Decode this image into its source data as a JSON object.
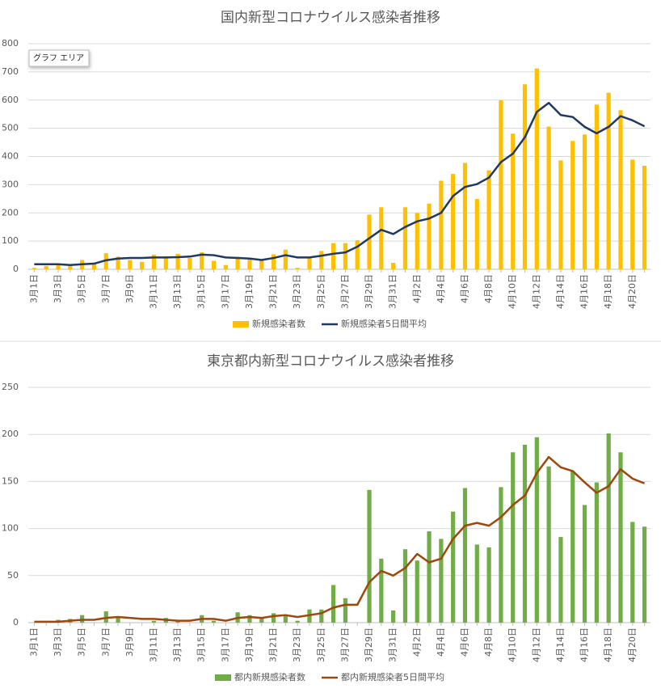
{
  "chart_data": [
    {
      "type": "bar",
      "title": "国内新型コロナウイルス感染者推移",
      "annotation": "グラフ エリア",
      "categories": [
        "3月1日",
        null,
        "3月3日",
        null,
        "3月5日",
        null,
        "3月7日",
        null,
        "3月9日",
        null,
        "3月11日",
        null,
        "3月13日",
        null,
        "3月15日",
        null,
        "3月17日",
        null,
        "3月19日",
        null,
        "3月21日",
        null,
        "3月23日",
        null,
        "3月25日",
        null,
        "3月27日",
        null,
        "3月29日",
        null,
        "3月31日",
        null,
        "4月2日",
        null,
        "4月4日",
        null,
        "4月6日",
        null,
        "4月8日",
        null,
        "4月10日",
        null,
        "4月12日",
        null,
        "4月14日",
        null,
        "4月16日",
        null,
        "4月18日",
        null,
        "4月20日",
        null
      ],
      "series": [
        {
          "name": "新規感染者数",
          "type": "bar",
          "color": "#ffc000",
          "values": [
            5,
            12,
            14,
            18,
            33,
            20,
            57,
            45,
            33,
            26,
            52,
            46,
            55,
            40,
            60,
            30,
            15,
            44,
            39,
            34,
            53,
            70,
            5,
            39,
            65,
            93,
            93,
            103,
            194,
            220,
            23,
            220,
            200,
            233,
            314,
            338,
            377,
            249,
            351,
            599,
            481,
            656,
            712,
            506,
            386,
            455,
            478,
            584,
            626,
            564,
            389,
            367
          ]
        },
        {
          "name": "新規感染者5日間平均",
          "type": "line",
          "color": "#203864",
          "values": [
            18,
            18,
            18,
            15,
            18,
            20,
            32,
            38,
            40,
            40,
            42,
            42,
            43,
            45,
            52,
            50,
            42,
            40,
            38,
            33,
            40,
            50,
            42,
            42,
            48,
            55,
            60,
            80,
            110,
            140,
            125,
            150,
            170,
            180,
            200,
            260,
            292,
            302,
            325,
            380,
            410,
            468,
            558,
            590,
            547,
            540,
            505,
            482,
            505,
            543,
            528,
            507
          ]
        }
      ],
      "ylim": [
        0,
        800
      ],
      "yticks": [
        0,
        100,
        200,
        300,
        400,
        500,
        600,
        700,
        800
      ],
      "grid": true,
      "legend": "bottom"
    },
    {
      "type": "bar",
      "title": "東京都内新型コロナウイルス感染者推移",
      "categories": [
        "3月1日",
        null,
        "3月3日",
        null,
        "3月5日",
        null,
        "3月7日",
        null,
        "3月9日",
        null,
        "3月11日",
        null,
        "3月13日",
        null,
        "3月15日",
        null,
        "3月17日",
        null,
        "3月19日",
        null,
        "3月21日",
        null,
        "3月23日",
        null,
        "3月25日",
        null,
        "3月27日",
        null,
        "3月29日",
        null,
        "3月31日",
        null,
        "4月2日",
        null,
        "4月4日",
        null,
        "4月6日",
        null,
        "4月8日",
        null,
        "4月10日",
        null,
        "4月12日",
        null,
        "4月14日",
        null,
        "4月16日",
        null,
        "4月18日",
        null,
        "4月20日",
        null
      ],
      "series": [
        {
          "name": "都内新規感染者数",
          "type": "bar",
          "color": "#70ad47",
          "values": [
            0,
            0,
            3,
            4,
            8,
            0,
            12,
            6,
            0,
            0,
            2,
            5,
            2,
            0,
            8,
            2,
            0,
            11,
            8,
            6,
            10,
            7,
            2,
            14,
            14,
            40,
            26,
            0,
            141,
            68,
            13,
            78,
            66,
            97,
            89,
            118,
            143,
            83,
            80,
            144,
            181,
            189,
            197,
            166,
            91,
            161,
            125,
            149,
            201,
            181,
            107,
            102
          ]
        },
        {
          "name": "都内新規感染者5日間平均",
          "type": "line",
          "color": "#9e480e",
          "values": [
            1,
            1,
            1,
            2,
            3,
            3,
            5,
            6,
            5,
            4,
            4,
            3,
            2,
            2,
            4,
            4,
            2,
            5,
            6,
            5,
            7,
            8,
            6,
            8,
            10,
            16,
            19,
            19,
            43,
            55,
            50,
            58,
            73,
            64,
            68,
            89,
            103,
            106,
            103,
            112,
            125,
            135,
            159,
            176,
            165,
            161,
            149,
            138,
            145,
            163,
            153,
            148
          ]
        }
      ],
      "ylim": [
        0,
        250
      ],
      "yticks": [
        0,
        50,
        100,
        150,
        200,
        250
      ],
      "grid": true,
      "legend": "bottom"
    }
  ]
}
